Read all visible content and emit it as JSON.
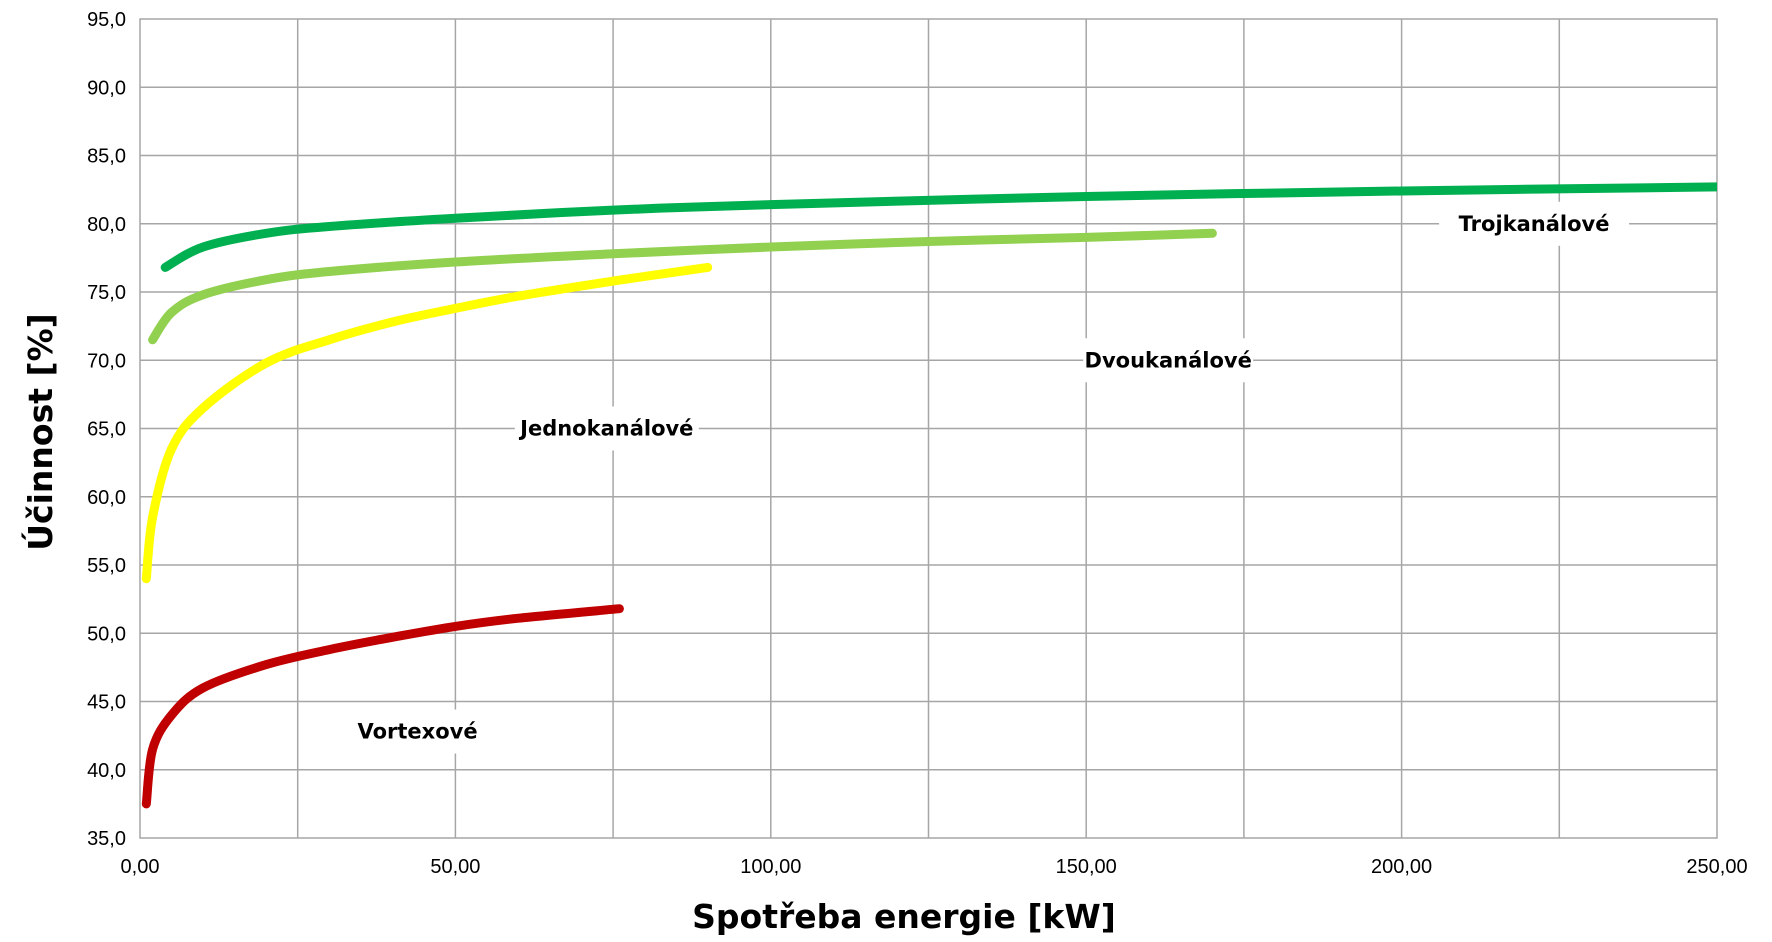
{
  "chart_data": {
    "type": "line",
    "xlabel": "Spotřeba energie [kW]",
    "ylabel": "Účinnost [%]",
    "xlim": [
      0,
      250
    ],
    "ylim": [
      35,
      95
    ],
    "x_ticks": [
      "0,00",
      "50,00",
      "100,00",
      "150,00",
      "200,00",
      "250,00"
    ],
    "y_ticks": [
      "35,0",
      "40,0",
      "45,0",
      "50,0",
      "55,0",
      "60,0",
      "65,0",
      "70,0",
      "75,0",
      "80,0",
      "85,0",
      "90,0",
      "95,0"
    ],
    "grid": true,
    "legend": "none",
    "series": [
      {
        "name": "Trojkanálové",
        "color": "#00b050",
        "x": [
          4,
          10,
          20,
          30,
          50,
          75,
          100,
          150,
          200,
          250
        ],
        "values": [
          76.8,
          78.3,
          79.3,
          79.8,
          80.4,
          81.0,
          81.4,
          82.0,
          82.4,
          82.7
        ]
      },
      {
        "name": "Dvoukanálové",
        "color": "#92d050",
        "x": [
          2,
          5,
          10,
          20,
          30,
          50,
          75,
          100,
          125,
          150,
          170
        ],
        "values": [
          71.5,
          73.5,
          74.8,
          75.9,
          76.5,
          77.2,
          77.8,
          78.3,
          78.7,
          79.0,
          79.3
        ]
      },
      {
        "name": "Jednokanálové",
        "color": "#ffff00",
        "x": [
          1,
          2,
          5,
          10,
          20,
          30,
          40,
          50,
          60,
          75,
          90
        ],
        "values": [
          54.0,
          58.5,
          63.5,
          66.5,
          69.8,
          71.5,
          72.8,
          73.8,
          74.7,
          75.8,
          76.8
        ]
      },
      {
        "name": "Vortexové",
        "color": "#c00000",
        "x": [
          1,
          2,
          5,
          10,
          20,
          30,
          40,
          50,
          60,
          76
        ],
        "values": [
          37.5,
          41.5,
          44.0,
          46.0,
          47.7,
          48.8,
          49.7,
          50.5,
          51.1,
          51.8
        ]
      }
    ]
  }
}
